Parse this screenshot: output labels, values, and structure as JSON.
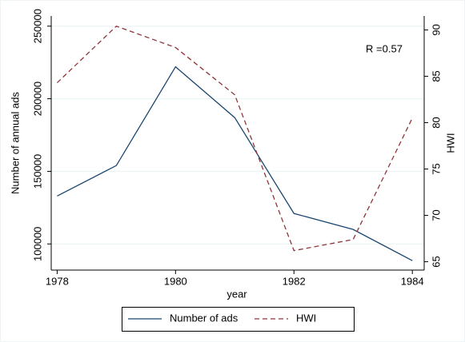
{
  "chart_data": {
    "type": "line",
    "x": [
      1978,
      1979,
      1980,
      1981,
      1982,
      1983,
      1984
    ],
    "xlabel": "year",
    "ylabel": "Number of annual ads",
    "y2label": "HWI",
    "annotation": "R =0.57",
    "xlim": [
      1977.9,
      1984.2
    ],
    "xticks": [
      1978,
      1980,
      1982,
      1984
    ],
    "ylim": [
      82000,
      257000
    ],
    "yticks": [
      100000,
      150000,
      200000,
      250000
    ],
    "y2lim": [
      64.1,
      91.5
    ],
    "y2ticks": [
      65,
      70,
      75,
      80,
      85,
      90
    ],
    "grid": true,
    "legend": "bottom",
    "series": [
      {
        "name": "Number of ads",
        "color": "#1a476f",
        "dash": false,
        "values": [
          133000,
          154000,
          222000,
          187000,
          121000,
          110000,
          88500
        ]
      },
      {
        "name": "HWI",
        "color": "#90353b",
        "dash": true,
        "axis": "y2",
        "values": [
          84.3,
          90.4,
          88.1,
          83.0,
          66.2,
          67.4,
          80.5
        ]
      }
    ]
  }
}
